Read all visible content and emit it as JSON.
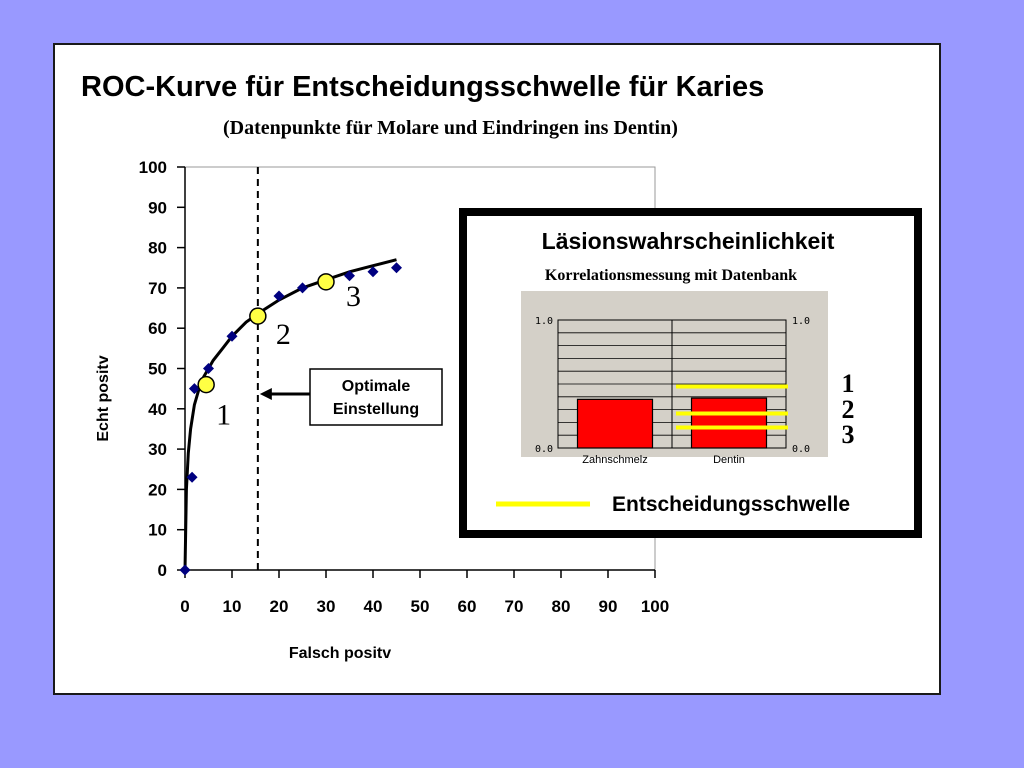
{
  "slide": {
    "background": "#9999ff",
    "title": "ROC-Kurve für Entscheidungsschwelle für Karies",
    "subtitle": "(Datenpunkte für Molare und Eindringen ins Dentin)"
  },
  "chart_data": {
    "type": "scatter",
    "xlabel": "Falsch positv",
    "ylabel": "Echt positv",
    "xlim": [
      0,
      100
    ],
    "ylim": [
      0,
      100
    ],
    "x_ticks": [
      "0",
      "10",
      "20",
      "30",
      "40",
      "50",
      "60",
      "70",
      "80",
      "90",
      "100"
    ],
    "y_ticks": [
      "0",
      "10",
      "20",
      "30",
      "40",
      "50",
      "60",
      "70",
      "80",
      "90",
      "100"
    ],
    "grid": false,
    "series": [
      {
        "marker": "diamond",
        "color": "#000080",
        "x": [
          0,
          1.5,
          2,
          5,
          10,
          20,
          25,
          35,
          40,
          45
        ],
        "y": [
          0,
          23,
          45,
          50,
          58,
          68,
          70,
          73,
          74,
          75
        ]
      }
    ],
    "fitted_curve": {
      "color": "#000000",
      "x": [
        0,
        0.3,
        0.7,
        1.2,
        2,
        3,
        4,
        6,
        8,
        10,
        13,
        16,
        20,
        25,
        30,
        35,
        40,
        45
      ],
      "y": [
        0,
        20,
        29,
        35,
        41,
        45,
        48,
        52,
        55,
        58,
        61.5,
        64,
        67,
        70,
        72,
        74,
        75.5,
        77
      ]
    },
    "operating_points": [
      {
        "label": "1",
        "x": 4.5,
        "y": 46,
        "color": "#ffff44"
      },
      {
        "label": "2",
        "x": 15.5,
        "y": 63,
        "color": "#ffff44"
      },
      {
        "label": "3",
        "x": 30,
        "y": 71.5,
        "color": "#ffff44"
      }
    ],
    "reference_line": {
      "x": 15.5,
      "style": "dashed"
    },
    "annotation": {
      "line1": "Optimale",
      "line2": "Einstellung"
    }
  },
  "inset": {
    "title": "Läsionswahrscheinlichkeit",
    "subtitle": "Korrelationsmessung mit Datenbank",
    "panel_background": "#d4d0c8",
    "scale_top": "1.0",
    "scale_bottom": "0.0",
    "bars": [
      {
        "label": "Zahnschmelz",
        "value": 0.38,
        "color": "#ff0000"
      },
      {
        "label": "Dentin",
        "value": 0.39,
        "color": "#ff0000"
      }
    ],
    "thresholds": [
      {
        "label": "1",
        "value": 0.48
      },
      {
        "label": "2",
        "value": 0.27
      },
      {
        "label": "3",
        "value": 0.16
      }
    ],
    "threshold_color": "#ffff00",
    "legend_label": "Entscheidungsschwelle"
  }
}
